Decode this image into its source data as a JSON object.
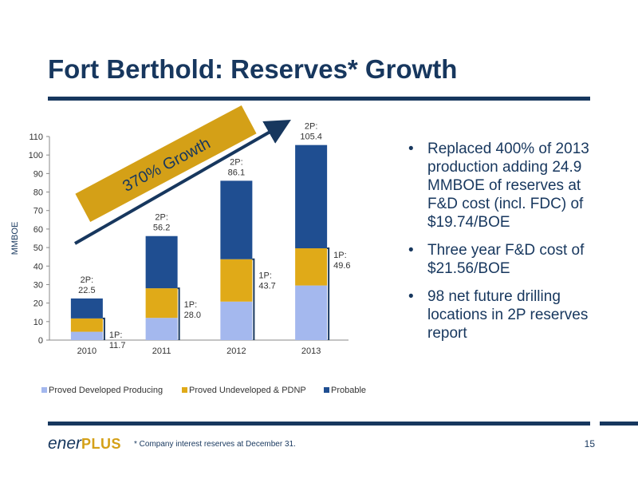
{
  "slide": {
    "title": "Fort Berthold:  Reserves* Growth",
    "bullets": [
      "Replaced 400% of 2013 production adding 24.9 MMBOE of reserves at F&D cost (incl. FDC) of $19.74/BOE",
      "Three year F&D cost of $21.56/BOE",
      "98 net future drilling locations in 2P reserves report"
    ],
    "footnote": "* Company interest reserves at December 31.",
    "page_number": "15",
    "logo": {
      "part1": "ener",
      "part2": "PLUS"
    }
  },
  "chart_data": {
    "type": "bar",
    "stacked": true,
    "categories": [
      "2010",
      "2011",
      "2012",
      "2013"
    ],
    "series": [
      {
        "name": "Proved Developed Producing",
        "color": "#a4b8ee",
        "values": [
          4.5,
          12.0,
          20.8,
          29.5
        ]
      },
      {
        "name": "Proved Undeveloped & PDNP",
        "color": "#e0aa18",
        "values": [
          7.2,
          16.0,
          22.9,
          20.1
        ]
      },
      {
        "name": "Probable",
        "color": "#1f4e91",
        "values": [
          10.8,
          28.2,
          42.4,
          55.8
        ]
      }
    ],
    "label_1p": [
      "1P:\n11.7",
      "1P:\n28.0",
      "1P:\n43.7",
      "1P:\n49.6"
    ],
    "label_2p": [
      "2P:\n22.5",
      "2P:\n56.2",
      "2P:\n86.1",
      "2P:\n105.4"
    ],
    "values_1p": [
      11.7,
      28.0,
      43.7,
      49.6
    ],
    "values_2p": [
      22.5,
      56.2,
      86.1,
      105.4
    ],
    "ylabel": "MMBOE",
    "ylim": [
      0,
      110
    ],
    "yticks": [
      0,
      10,
      20,
      30,
      40,
      50,
      60,
      70,
      80,
      90,
      100,
      110
    ],
    "grid": false,
    "legend_position": "bottom",
    "annotation": "370% Growth",
    "colors": {
      "navy": "#17375e",
      "gold": "#d4a017"
    }
  }
}
